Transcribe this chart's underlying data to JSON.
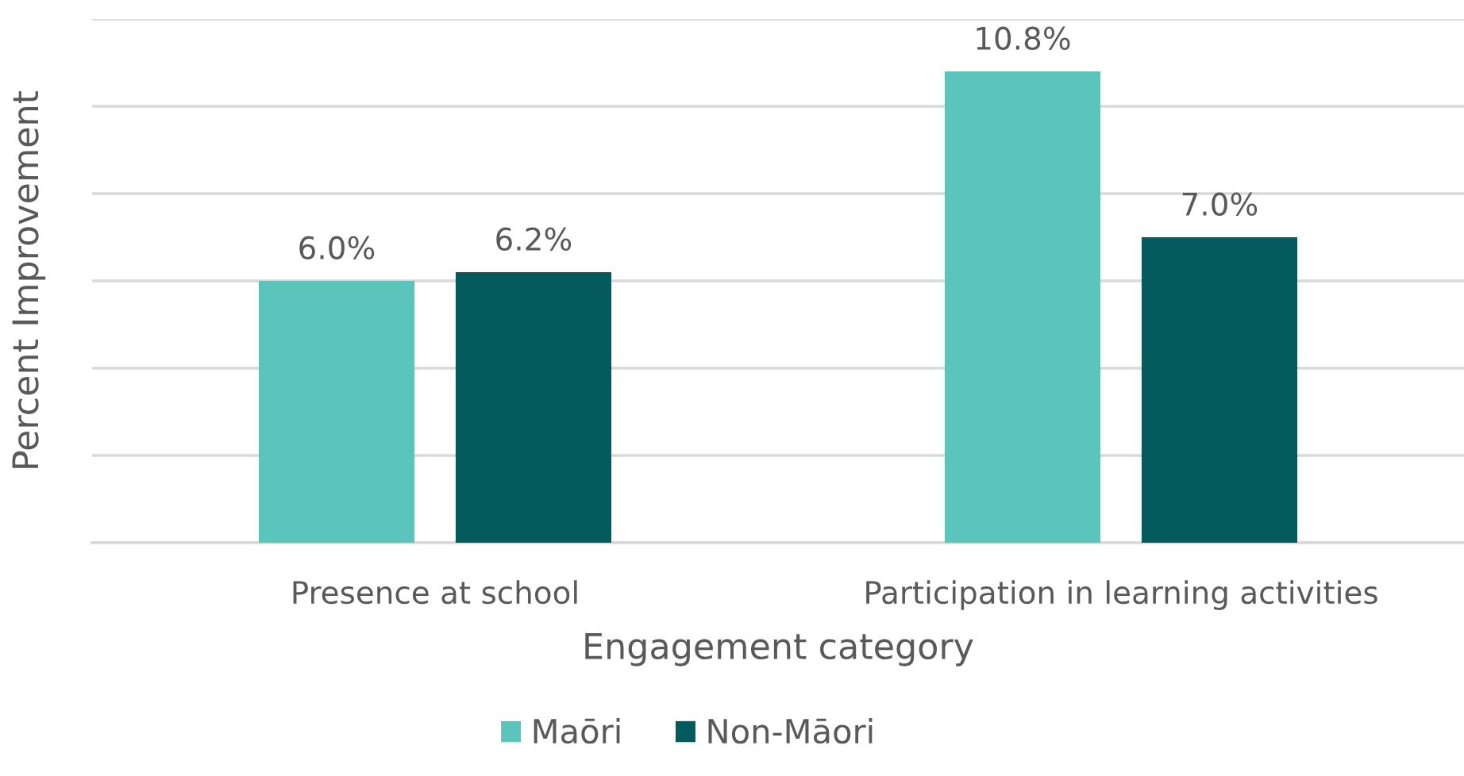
{
  "chart_data": {
    "type": "bar",
    "xlabel": "Engagement category",
    "ylabel": "Percent Improvement",
    "categories": [
      "Presence at school",
      "Participation in learning activities"
    ],
    "series": [
      {
        "name": "Maōri",
        "color": "#5bc4bb",
        "values": [
          6.0,
          10.8
        ],
        "value_labels": [
          "6.0%",
          "10.8%"
        ]
      },
      {
        "name": "Non-Māori",
        "color": "#055a5e",
        "values": [
          6.2,
          7.0
        ],
        "value_labels": [
          "6.2%",
          "7.0%"
        ]
      }
    ],
    "ylim": [
      0,
      12
    ],
    "yticks": [
      {
        "value": 0,
        "label": null
      },
      {
        "value": 2,
        "label": null
      },
      {
        "value": 4,
        "label": null
      },
      {
        "value": 6,
        "label": null
      },
      {
        "value": 8,
        "label": null
      },
      {
        "value": 10,
        "label": null
      },
      {
        "value": 12,
        "label": null
      }
    ],
    "grid": "y",
    "legend": "bottom",
    "tick_labels": "x"
  }
}
